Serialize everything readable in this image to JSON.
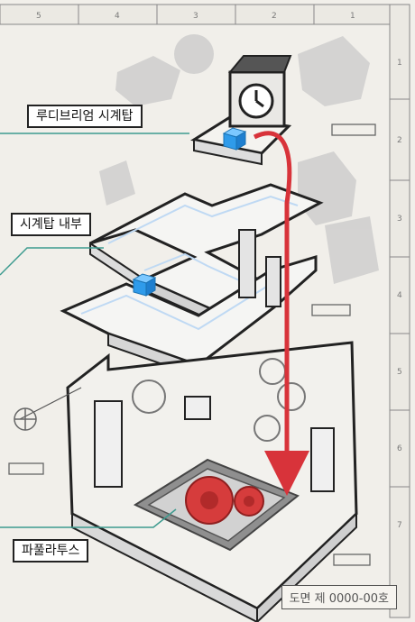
{
  "ruler": {
    "top_numbers": [
      "5",
      "4",
      "3",
      "2",
      "1"
    ],
    "side_numbers": [
      "1",
      "2",
      "3",
      "4",
      "5",
      "6",
      "7"
    ]
  },
  "labels": {
    "clocktower": "루디브리엄 시계탑",
    "clocktower_inside": "시계탑 내부",
    "papulatus": "파풀라투스"
  },
  "drawing_number": "도면 제 0000-00호",
  "colors": {
    "paper": "#f1efea",
    "ink": "#222222",
    "cube_blue": "#2f9bea",
    "arrow_red": "#d8333a",
    "gear_red": "#d63c3c",
    "teal_line": "#3d9b8f",
    "ghost_gray": "#b9b9b9"
  }
}
